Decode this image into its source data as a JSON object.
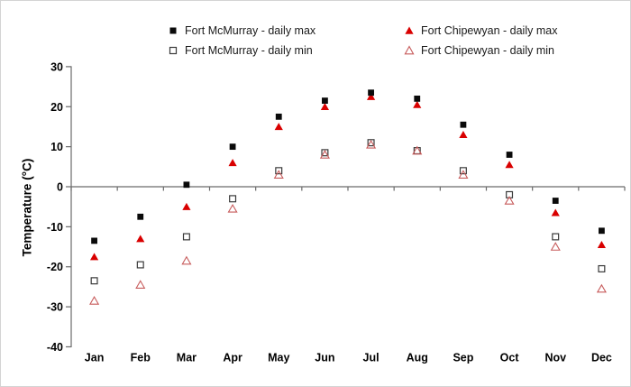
{
  "chart_data": {
    "type": "scatter",
    "categories": [
      "Jan",
      "Feb",
      "Mar",
      "Apr",
      "May",
      "Jun",
      "Jul",
      "Aug",
      "Sep",
      "Oct",
      "Nov",
      "Dec"
    ],
    "series": [
      {
        "name": "Fort McMurray - daily max",
        "marker": "filled-square",
        "color": "#000000",
        "values": [
          -13.5,
          -7.5,
          0.5,
          10,
          17.5,
          21.5,
          23.5,
          22,
          15.5,
          8,
          -3.5,
          -11
        ]
      },
      {
        "name": "Fort McMurray - daily min",
        "marker": "open-square",
        "color": "#000000",
        "values": [
          -23.5,
          -19.5,
          -12.5,
          -3,
          4,
          8.5,
          11,
          9,
          4,
          -2,
          -12.5,
          -20.5
        ]
      },
      {
        "name": "Fort Chipewyan - daily max",
        "marker": "filled-triangle",
        "color": "#d90000",
        "values": [
          -17.5,
          -13,
          -5,
          6,
          15,
          20,
          22.5,
          20.5,
          13,
          5.5,
          -6.5,
          -14.5
        ]
      },
      {
        "name": "Fort Chipewyan - daily min",
        "marker": "open-triangle",
        "color": "#c75b5b",
        "values": [
          -28.5,
          -24.5,
          -18.5,
          -5.5,
          3,
          8,
          10.5,
          9,
          3,
          -3.5,
          -15,
          -25.5
        ]
      }
    ],
    "title": "",
    "xlabel": "",
    "ylabel": "Temperature (°C)",
    "ylim": [
      -40,
      30
    ],
    "yticks": [
      30,
      20,
      10,
      0,
      -10,
      -20,
      -30,
      -40
    ],
    "grid": false,
    "legend_position": "top"
  }
}
